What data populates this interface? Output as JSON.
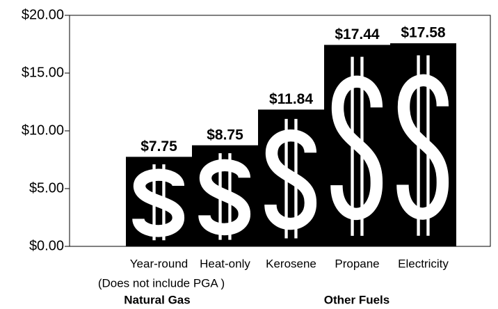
{
  "chart_data": {
    "type": "bar",
    "categories": [
      "Year-round",
      "Heat-only",
      "Kerosene",
      "Propane",
      "Electricity"
    ],
    "values": [
      7.75,
      8.75,
      11.84,
      17.44,
      17.58
    ],
    "value_labels": [
      "$7.75",
      "$8.75",
      "$11.84",
      "$17.44",
      "$17.58"
    ],
    "color": "#000000",
    "ylim": [
      0,
      20
    ],
    "yticks": [
      {
        "value": 0,
        "label": "$0.00"
      },
      {
        "value": 5,
        "label": "$5.00"
      },
      {
        "value": 10,
        "label": "$10.00"
      },
      {
        "value": 15,
        "label": "$15.00"
      },
      {
        "value": 20,
        "label": "$20.00"
      }
    ],
    "grid": false,
    "groups": [
      {
        "name": "Natural Gas",
        "note": "(Does not include PGA )"
      },
      {
        "name": "Other Fuels"
      }
    ]
  }
}
